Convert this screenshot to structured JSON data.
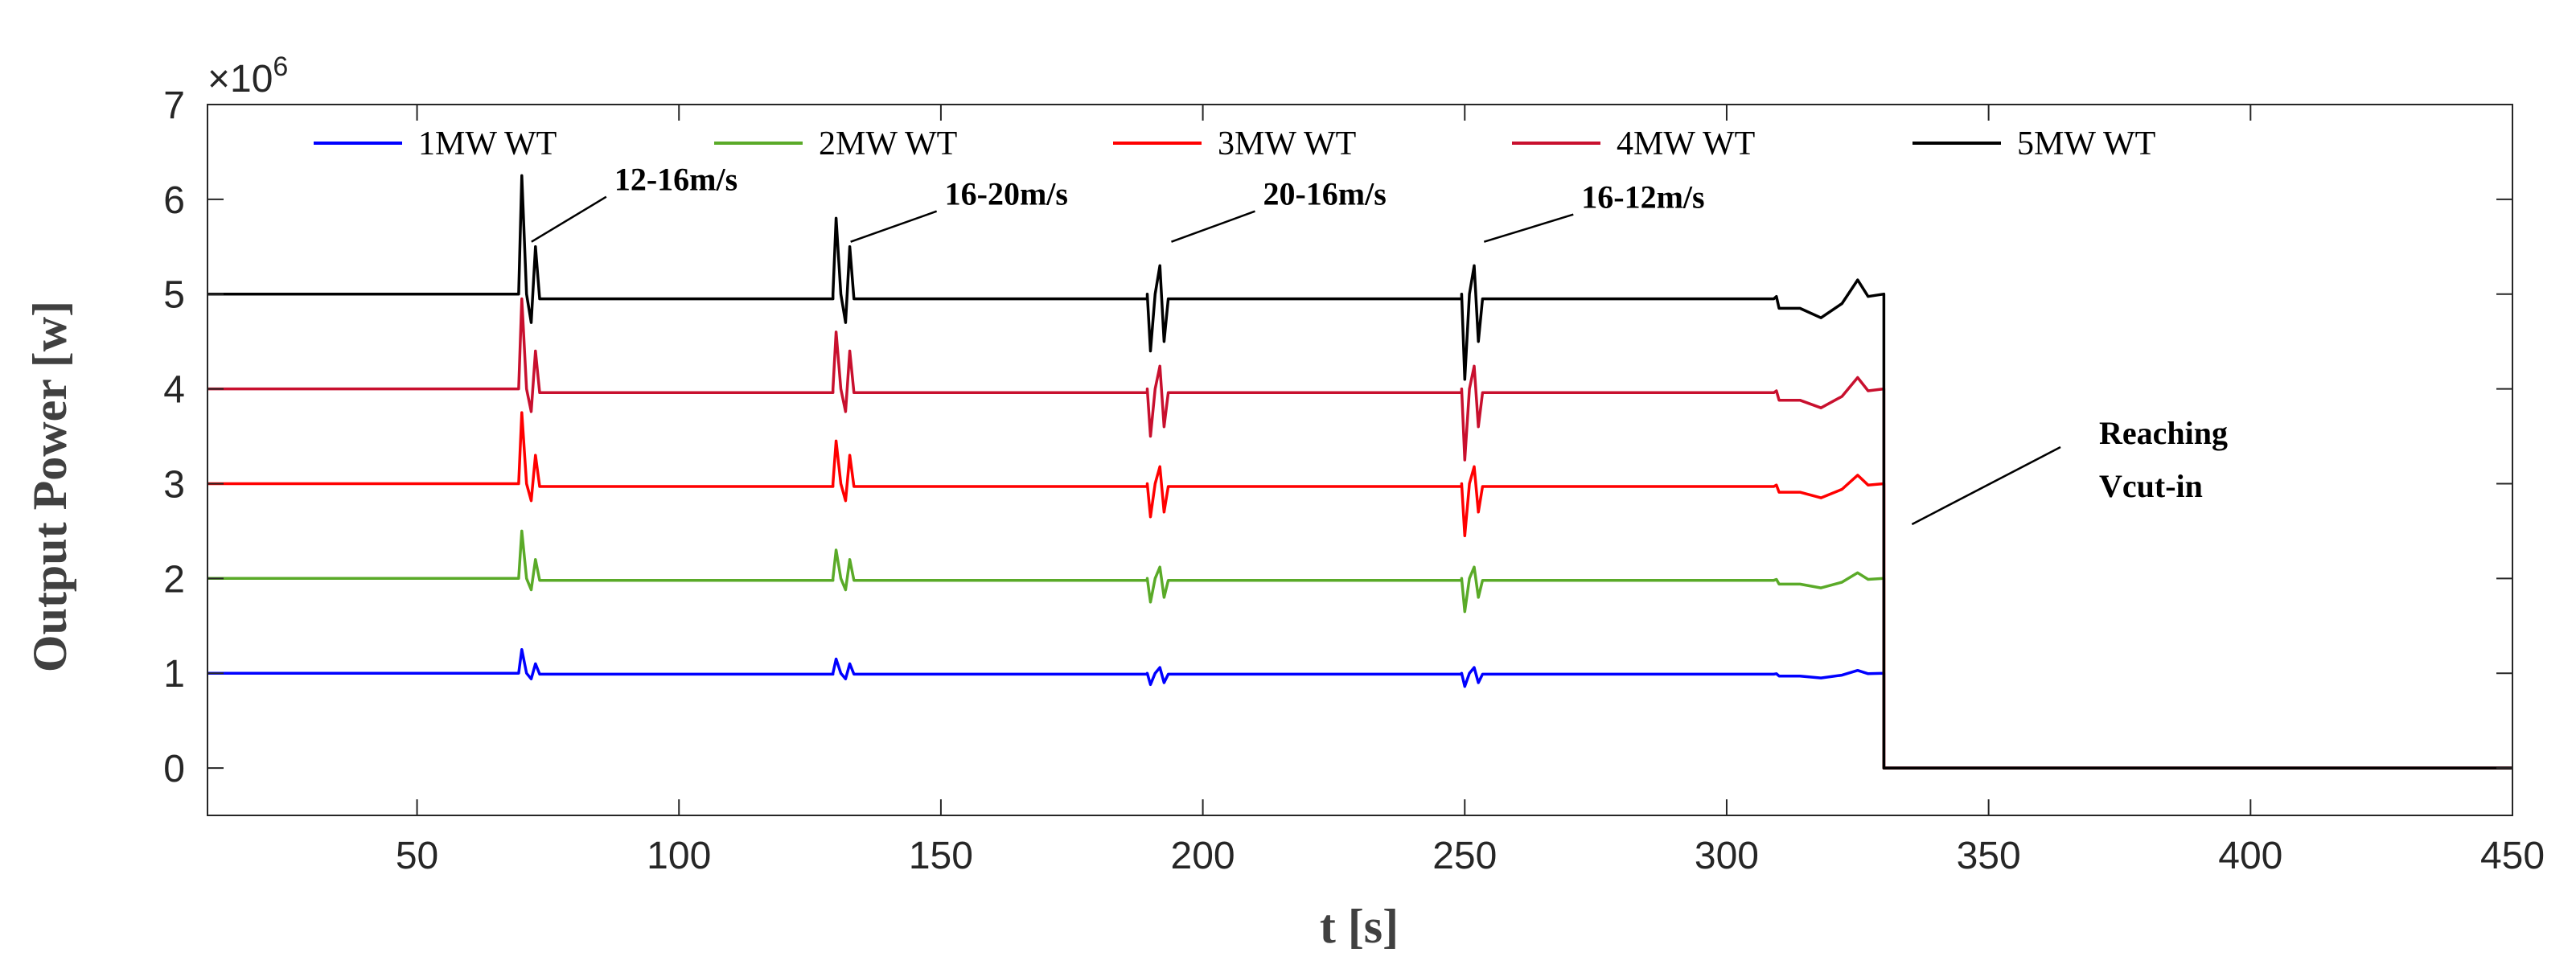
{
  "chart_data": {
    "type": "line",
    "title": "",
    "xlabel": "t [s]",
    "ylabel": "Output Power [w]",
    "xlim": [
      10,
      450
    ],
    "ylim": [
      -0.5,
      7
    ],
    "y_multiplier": "×10",
    "y_multiplier_exp": "6",
    "xticks": [
      50,
      100,
      150,
      200,
      250,
      300,
      350,
      400,
      450
    ],
    "yticks": [
      0,
      1,
      2,
      3,
      4,
      5,
      6,
      7
    ],
    "grid": false,
    "legend_position": "top",
    "cutoff_time": 330,
    "series": [
      {
        "name": "1MW WT",
        "color": "#0000ff",
        "rated": 1,
        "spikes": [
          1.25,
          1.15,
          0.88,
          0.86
        ]
      },
      {
        "name": "2MW WT",
        "color": "#5aaa28",
        "rated": 2,
        "spikes": [
          2.5,
          2.3,
          1.75,
          1.65
        ]
      },
      {
        "name": "3MW WT",
        "color": "#ff0000",
        "rated": 3,
        "spikes": [
          3.75,
          3.45,
          2.65,
          2.45
        ]
      },
      {
        "name": "4MW WT",
        "color": "#c8102e",
        "rated": 4,
        "spikes": [
          4.95,
          4.6,
          3.5,
          3.25
        ]
      },
      {
        "name": "5MW WT",
        "color": "#000000",
        "rated": 5,
        "spikes": [
          6.25,
          5.8,
          4.4,
          4.1
        ]
      }
    ],
    "events": [
      {
        "t": 70,
        "label": "12-16m/s",
        "direction": "up"
      },
      {
        "t": 130,
        "label": "16-20m/s",
        "direction": "up"
      },
      {
        "t": 190,
        "label": "20-16m/s",
        "direction": "down"
      },
      {
        "t": 250,
        "label": "16-12m/s",
        "direction": "down"
      }
    ],
    "annotations": [
      {
        "line1": "Reaching",
        "line2": "Vcut-in"
      }
    ]
  }
}
